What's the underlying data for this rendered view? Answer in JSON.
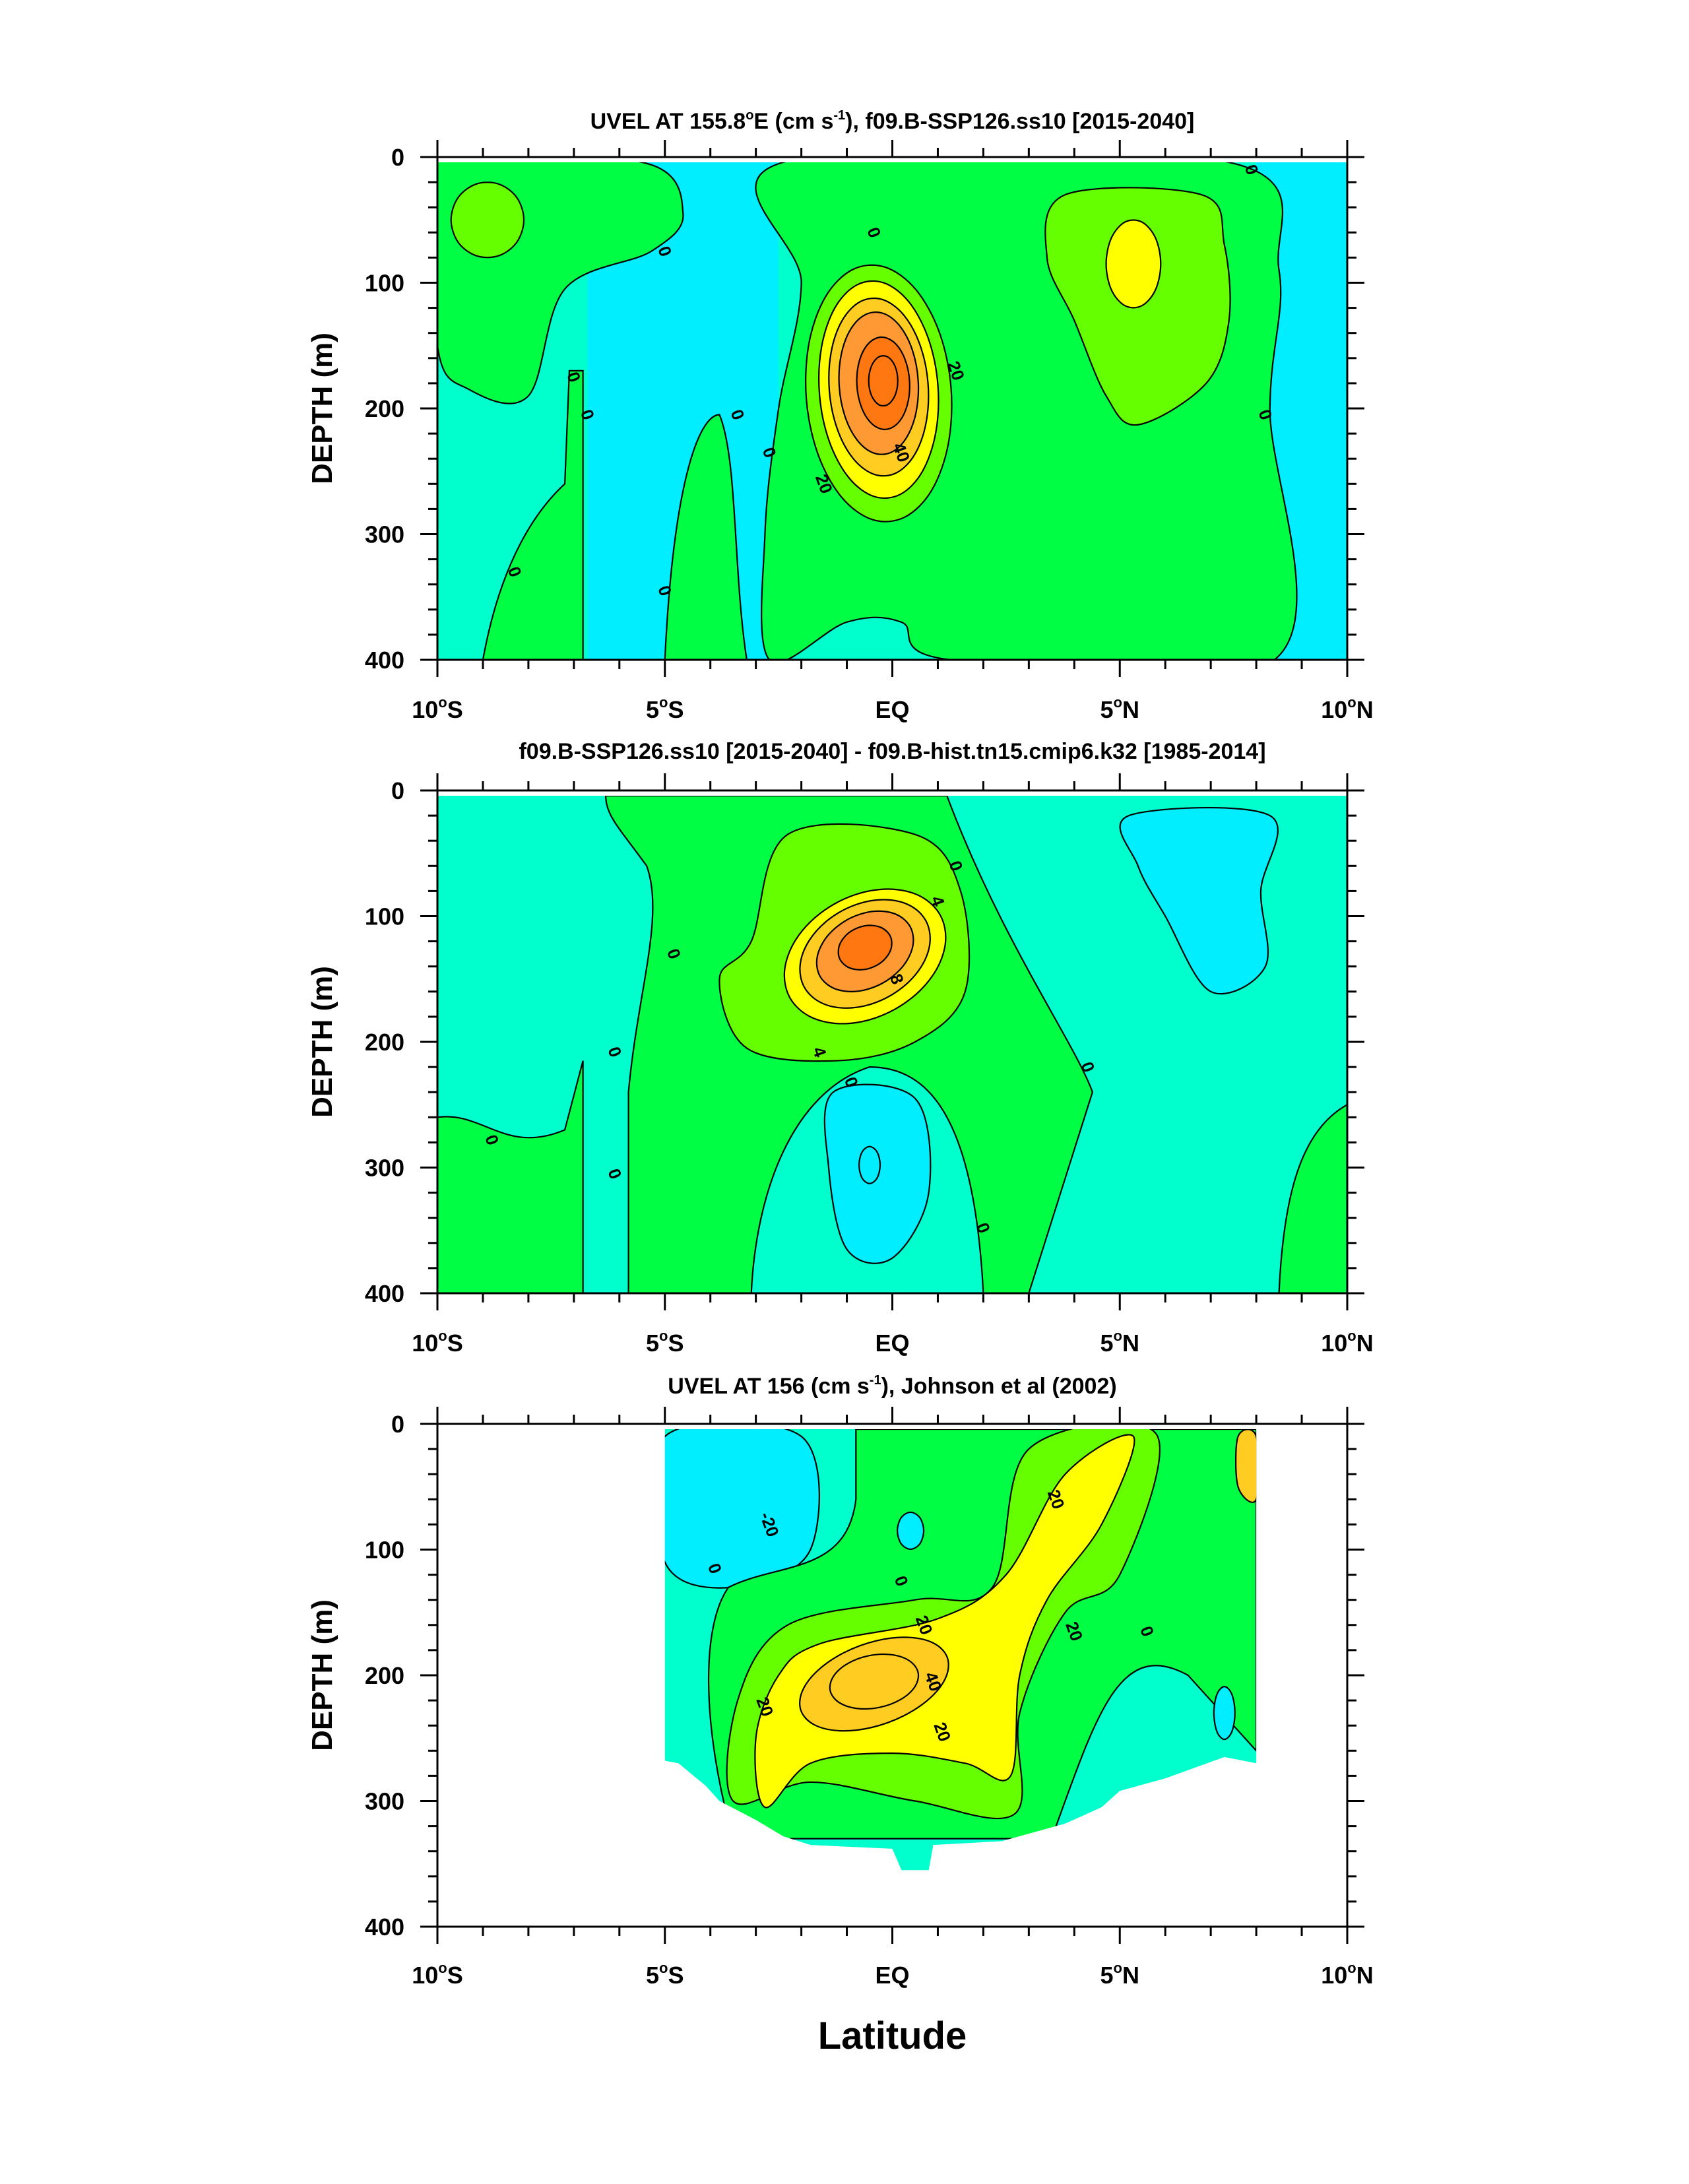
{
  "chart_data": [
    {
      "type": "contour",
      "title": "UVEL AT 155.8°E (cm s-1), f09.B-SSP126.ss10 [2015-2040]",
      "title_parts": {
        "pre": "UVEL AT 155.8",
        "deg": "o",
        "mid": "E (cm s",
        "sup": "-1",
        "post": "), f09.B-SSP126.ss10 [2015-2040]"
      },
      "xlabel": "",
      "ylabel": "DEPTH (m)",
      "xlim": [
        -10,
        10
      ],
      "ylim": [
        0,
        400
      ],
      "xticks": [
        -10,
        -5,
        0,
        5,
        10
      ],
      "yticks": [
        0,
        100,
        200,
        300,
        400
      ],
      "contour_labels": [
        {
          "text": "0",
          "lat": 7.9,
          "depth": 10
        },
        {
          "text": "0",
          "lat": -0.4,
          "depth": 60
        },
        {
          "text": "0",
          "lat": -5.0,
          "depth": 75
        },
        {
          "text": "0",
          "lat": -7.0,
          "depth": 175
        },
        {
          "text": "0",
          "lat": -6.7,
          "depth": 205
        },
        {
          "text": "0",
          "lat": -3.4,
          "depth": 205
        },
        {
          "text": "0",
          "lat": -2.7,
          "depth": 235
        },
        {
          "text": "0",
          "lat": 8.2,
          "depth": 205
        },
        {
          "text": "0",
          "lat": -8.3,
          "depth": 330
        },
        {
          "text": "0",
          "lat": -5.0,
          "depth": 345
        },
        {
          "text": "20",
          "lat": 1.4,
          "depth": 170
        },
        {
          "text": "20",
          "lat": -1.5,
          "depth": 260
        },
        {
          "text": "40",
          "lat": 0.2,
          "depth": 235
        }
      ],
      "field_features": [
        {
          "name": "EUC core",
          "lat": 0.0,
          "depth": 180,
          "peak": 50
        },
        {
          "name": "NECC subsurface max",
          "lat": 5.2,
          "depth": 80,
          "peak": 25
        },
        {
          "name": "South eastward cell",
          "lat": -9.1,
          "depth": 50,
          "peak": 10
        }
      ],
      "colors": [
        "#00eeff",
        "#00ffcc",
        "#00ff44",
        "#66ff00",
        "#ffff00",
        "#ffcc22",
        "#ff9933",
        "#ff7711"
      ]
    },
    {
      "type": "contour",
      "title": "f09.B-SSP126.ss10 [2015-2040] - f09.B-hist.tn15.cmip6.k32 [1985-2014]",
      "xlabel": "",
      "ylabel": "DEPTH (m)",
      "xlim": [
        -10,
        10
      ],
      "ylim": [
        0,
        400
      ],
      "xticks": [
        -10,
        -5,
        0,
        5,
        10
      ],
      "yticks": [
        0,
        100,
        200,
        300,
        400
      ],
      "contour_labels": [
        {
          "text": "0",
          "lat": 1.4,
          "depth": 60
        },
        {
          "text": "4",
          "lat": 1.0,
          "depth": 88
        },
        {
          "text": "0",
          "lat": -4.8,
          "depth": 130
        },
        {
          "text": "8",
          "lat": 0.1,
          "depth": 150
        },
        {
          "text": "4",
          "lat": -1.6,
          "depth": 208
        },
        {
          "text": "0",
          "lat": -0.9,
          "depth": 232
        },
        {
          "text": "0",
          "lat": -6.1,
          "depth": 208
        },
        {
          "text": "0",
          "lat": 4.3,
          "depth": 220
        },
        {
          "text": "0",
          "lat": -8.8,
          "depth": 278
        },
        {
          "text": "0",
          "lat": -6.1,
          "depth": 305
        },
        {
          "text": "0",
          "lat": 2.0,
          "depth": 348
        }
      ],
      "field_features": [
        {
          "name": "positive anomaly core",
          "lat": -0.6,
          "depth": 120,
          "peak": 12
        },
        {
          "name": "negative anomaly core",
          "lat": -0.5,
          "depth": 295,
          "peak": -4
        }
      ],
      "colors": [
        "#00eeff",
        "#00ffcc",
        "#00ff44",
        "#66ff00",
        "#ffff00",
        "#ffcc22",
        "#ff9933",
        "#ff7711"
      ]
    },
    {
      "type": "contour",
      "title": "UVEL AT 156 (cm s-1), Johnson et al (2002)",
      "title_parts": {
        "pre": "UVEL AT 156 (cm s",
        "sup": "-1",
        "post": "), Johnson et al (2002)"
      },
      "xlabel": "Latitude",
      "ylabel": "DEPTH (m)",
      "xlim": [
        -10,
        10
      ],
      "ylim": [
        0,
        400
      ],
      "xticks": [
        -10,
        -5,
        0,
        5,
        10
      ],
      "yticks": [
        0,
        100,
        200,
        300,
        400
      ],
      "data_extent_lat": [
        -5,
        8
      ],
      "contour_labels": [
        {
          "text": "-20",
          "lat": -2.7,
          "depth": 80
        },
        {
          "text": "20",
          "lat": 3.6,
          "depth": 60
        },
        {
          "text": "0",
          "lat": -3.9,
          "depth": 115
        },
        {
          "text": "0",
          "lat": 0.2,
          "depth": 125
        },
        {
          "text": "20",
          "lat": 0.7,
          "depth": 160
        },
        {
          "text": "20",
          "lat": 4.0,
          "depth": 165
        },
        {
          "text": "0",
          "lat": 5.6,
          "depth": 165
        },
        {
          "text": "40",
          "lat": 0.9,
          "depth": 205
        },
        {
          "text": "20",
          "lat": -2.8,
          "depth": 225
        },
        {
          "text": "20",
          "lat": 1.1,
          "depth": 245
        }
      ],
      "field_features": [
        {
          "name": "EUC core",
          "lat": -0.4,
          "depth": 205,
          "peak": 45
        }
      ],
      "colors": [
        "#00eeff",
        "#00ffcc",
        "#00ff44",
        "#66ff00",
        "#ffff00",
        "#ffcc22",
        "#ff9933",
        "#ff7711"
      ]
    }
  ],
  "tick_labels": {
    "x": [
      {
        "num": "10",
        "deg": "o",
        "hemi": "S"
      },
      {
        "num": "5",
        "deg": "o",
        "hemi": "S"
      },
      {
        "num": "",
        "deg": "",
        "hemi": "EQ"
      },
      {
        "num": "5",
        "deg": "o",
        "hemi": "N"
      },
      {
        "num": "10",
        "deg": "o",
        "hemi": "N"
      }
    ],
    "y": [
      "0",
      "100",
      "200",
      "300",
      "400"
    ]
  }
}
